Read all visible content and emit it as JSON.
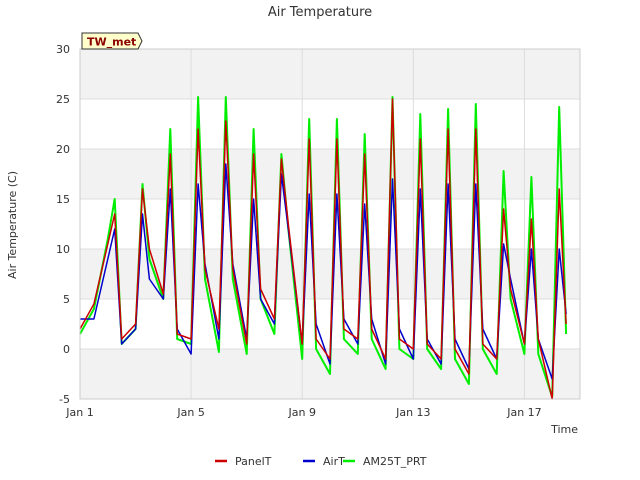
{
  "chart_data": {
    "type": "line",
    "title": "Air Temperature",
    "xlabel": "Time",
    "ylabel": "Air Temperature (C)",
    "station_label": "TW_met",
    "ylim": [
      -5,
      30
    ],
    "y_ticks": [
      -5,
      0,
      5,
      10,
      15,
      20,
      25,
      30
    ],
    "xlim": [
      "2024-01-01",
      "2024-01-19"
    ],
    "x_ticks": [
      {
        "date": "2024-01-01",
        "label": "Jan 1"
      },
      {
        "date": "2024-01-05",
        "label": "Jan 5"
      },
      {
        "date": "2024-01-09",
        "label": "Jan 9"
      },
      {
        "date": "2024-01-13",
        "label": "Jan 13"
      },
      {
        "date": "2024-01-17",
        "label": "Jan 17"
      }
    ],
    "grid": true,
    "shaded_bands": [
      [
        -5,
        0
      ],
      [
        5,
        10
      ],
      [
        15,
        20
      ],
      [
        25,
        30
      ]
    ],
    "legend_position": "bottom-center",
    "series": [
      {
        "name": "PanelT",
        "color": "#cc0000",
        "points": [
          [
            "2024-01-01",
            2.0
          ],
          [
            "2024-01-01T12",
            4.5
          ],
          [
            "2024-01-02",
            10.5
          ],
          [
            "2024-01-02T06",
            13.5
          ],
          [
            "2024-01-02T12",
            1.0
          ],
          [
            "2024-01-03",
            2.5
          ],
          [
            "2024-01-03T06",
            16.0
          ],
          [
            "2024-01-03T12",
            10.0
          ],
          [
            "2024-01-04",
            5.5
          ],
          [
            "2024-01-04T06",
            19.5
          ],
          [
            "2024-01-04T12",
            1.5
          ],
          [
            "2024-01-05",
            1.0
          ],
          [
            "2024-01-05T06",
            22.0
          ],
          [
            "2024-01-05T12",
            8.0
          ],
          [
            "2024-01-06",
            2.0
          ],
          [
            "2024-01-06T06",
            22.8
          ],
          [
            "2024-01-06T12",
            8.0
          ],
          [
            "2024-01-07",
            0.5
          ],
          [
            "2024-01-07T06",
            19.5
          ],
          [
            "2024-01-07T12",
            6.0
          ],
          [
            "2024-01-08",
            3.0
          ],
          [
            "2024-01-08T06",
            19.0
          ],
          [
            "2024-01-08T12",
            12.5
          ],
          [
            "2024-01-09",
            0.5
          ],
          [
            "2024-01-09T06",
            21.0
          ],
          [
            "2024-01-09T12",
            1.0
          ],
          [
            "2024-01-10",
            -1.0
          ],
          [
            "2024-01-10T06",
            21.0
          ],
          [
            "2024-01-10T12",
            2.0
          ],
          [
            "2024-01-11",
            1.0
          ],
          [
            "2024-01-11T06",
            19.5
          ],
          [
            "2024-01-11T12",
            2.0
          ],
          [
            "2024-01-12",
            -1.0
          ],
          [
            "2024-01-12T06",
            25.0
          ],
          [
            "2024-01-12T12",
            1.0
          ],
          [
            "2024-01-13",
            0.0
          ],
          [
            "2024-01-13T06",
            21.0
          ],
          [
            "2024-01-13T12",
            0.5
          ],
          [
            "2024-01-14",
            -1.0
          ],
          [
            "2024-01-14T06",
            22.0
          ],
          [
            "2024-01-14T12",
            0.0
          ],
          [
            "2024-01-15",
            -2.5
          ],
          [
            "2024-01-15T06",
            22.0
          ],
          [
            "2024-01-15T12",
            0.5
          ],
          [
            "2024-01-16",
            -1.0
          ],
          [
            "2024-01-16T06",
            14.0
          ],
          [
            "2024-01-16T12",
            6.0
          ],
          [
            "2024-01-17",
            0.5
          ],
          [
            "2024-01-17T06",
            13.0
          ],
          [
            "2024-01-17T12",
            1.0
          ],
          [
            "2024-01-18",
            -5.0
          ],
          [
            "2024-01-18T06",
            16.0
          ],
          [
            "2024-01-18T12",
            2.5
          ]
        ]
      },
      {
        "name": "AirT",
        "color": "#0000cc",
        "points": [
          [
            "2024-01-01",
            3.0
          ],
          [
            "2024-01-01T12",
            3.0
          ],
          [
            "2024-01-02",
            9.0
          ],
          [
            "2024-01-02T06",
            12.0
          ],
          [
            "2024-01-02T12",
            0.5
          ],
          [
            "2024-01-03",
            2.0
          ],
          [
            "2024-01-03T06",
            13.5
          ],
          [
            "2024-01-03T12",
            7.0
          ],
          [
            "2024-01-04",
            5.0
          ],
          [
            "2024-01-04T06",
            16.0
          ],
          [
            "2024-01-04T12",
            2.0
          ],
          [
            "2024-01-05",
            -0.5
          ],
          [
            "2024-01-05T06",
            16.5
          ],
          [
            "2024-01-05T12",
            8.5
          ],
          [
            "2024-01-06",
            1.0
          ],
          [
            "2024-01-06T06",
            18.5
          ],
          [
            "2024-01-06T12",
            8.5
          ],
          [
            "2024-01-07",
            1.0
          ],
          [
            "2024-01-07T06",
            15.0
          ],
          [
            "2024-01-07T12",
            5.0
          ],
          [
            "2024-01-08",
            2.5
          ],
          [
            "2024-01-08T06",
            17.5
          ],
          [
            "2024-01-08T12",
            12.0
          ],
          [
            "2024-01-09",
            0.5
          ],
          [
            "2024-01-09T06",
            15.5
          ],
          [
            "2024-01-09T12",
            2.5
          ],
          [
            "2024-01-10",
            -1.5
          ],
          [
            "2024-01-10T06",
            15.5
          ],
          [
            "2024-01-10T12",
            3.0
          ],
          [
            "2024-01-11",
            0.5
          ],
          [
            "2024-01-11T06",
            14.5
          ],
          [
            "2024-01-11T12",
            3.0
          ],
          [
            "2024-01-12",
            -1.5
          ],
          [
            "2024-01-12T06",
            17.0
          ],
          [
            "2024-01-12T12",
            2.0
          ],
          [
            "2024-01-13",
            -1.0
          ],
          [
            "2024-01-13T06",
            16.0
          ],
          [
            "2024-01-13T12",
            1.0
          ],
          [
            "2024-01-14",
            -1.5
          ],
          [
            "2024-01-14T06",
            16.5
          ],
          [
            "2024-01-14T12",
            1.0
          ],
          [
            "2024-01-15",
            -2.0
          ],
          [
            "2024-01-15T06",
            16.5
          ],
          [
            "2024-01-15T12",
            2.0
          ],
          [
            "2024-01-16",
            -1.0
          ],
          [
            "2024-01-16T06",
            10.5
          ],
          [
            "2024-01-16T12",
            7.0
          ],
          [
            "2024-01-17",
            0.5
          ],
          [
            "2024-01-17T06",
            10.0
          ],
          [
            "2024-01-17T12",
            1.0
          ],
          [
            "2024-01-18",
            -3.0
          ],
          [
            "2024-01-18T06",
            10.0
          ],
          [
            "2024-01-18T12",
            3.5
          ]
        ]
      },
      {
        "name": "AM25T_PRT",
        "color": "#00ee00",
        "points": [
          [
            "2024-01-01",
            1.5
          ],
          [
            "2024-01-01T12",
            4.0
          ],
          [
            "2024-01-02",
            11.0
          ],
          [
            "2024-01-02T06",
            15.0
          ],
          [
            "2024-01-02T12",
            0.5
          ],
          [
            "2024-01-03",
            2.0
          ],
          [
            "2024-01-03T06",
            16.5
          ],
          [
            "2024-01-03T12",
            9.0
          ],
          [
            "2024-01-04",
            5.0
          ],
          [
            "2024-01-04T06",
            22.0
          ],
          [
            "2024-01-04T12",
            1.0
          ],
          [
            "2024-01-05",
            0.5
          ],
          [
            "2024-01-05T06",
            25.2
          ],
          [
            "2024-01-05T12",
            7.0
          ],
          [
            "2024-01-06",
            -0.3
          ],
          [
            "2024-01-06T06",
            25.2
          ],
          [
            "2024-01-06T12",
            7.0
          ],
          [
            "2024-01-07",
            -0.5
          ],
          [
            "2024-01-07T06",
            22.0
          ],
          [
            "2024-01-07T12",
            5.0
          ],
          [
            "2024-01-08",
            1.5
          ],
          [
            "2024-01-08T06",
            19.5
          ],
          [
            "2024-01-08T12",
            12.0
          ],
          [
            "2024-01-09",
            -1.0
          ],
          [
            "2024-01-09T06",
            23.0
          ],
          [
            "2024-01-09T12",
            0.0
          ],
          [
            "2024-01-10",
            -2.5
          ],
          [
            "2024-01-10T06",
            23.0
          ],
          [
            "2024-01-10T12",
            1.0
          ],
          [
            "2024-01-11",
            -0.5
          ],
          [
            "2024-01-11T06",
            21.5
          ],
          [
            "2024-01-11T12",
            1.0
          ],
          [
            "2024-01-12",
            -2.0
          ],
          [
            "2024-01-12T06",
            25.2
          ],
          [
            "2024-01-12T12",
            0.0
          ],
          [
            "2024-01-13",
            -1.0
          ],
          [
            "2024-01-13T06",
            23.5
          ],
          [
            "2024-01-13T12",
            0.0
          ],
          [
            "2024-01-14",
            -2.0
          ],
          [
            "2024-01-14T06",
            24.0
          ],
          [
            "2024-01-14T12",
            -1.0
          ],
          [
            "2024-01-15",
            -3.5
          ],
          [
            "2024-01-15T06",
            24.5
          ],
          [
            "2024-01-15T12",
            0.0
          ],
          [
            "2024-01-16",
            -2.5
          ],
          [
            "2024-01-16T06",
            17.8
          ],
          [
            "2024-01-16T12",
            5.0
          ],
          [
            "2024-01-17",
            -0.5
          ],
          [
            "2024-01-17T06",
            17.2
          ],
          [
            "2024-01-17T12",
            -0.5
          ],
          [
            "2024-01-18",
            -4.8
          ],
          [
            "2024-01-18T06",
            24.2
          ],
          [
            "2024-01-18T12",
            1.5
          ]
        ]
      }
    ]
  }
}
